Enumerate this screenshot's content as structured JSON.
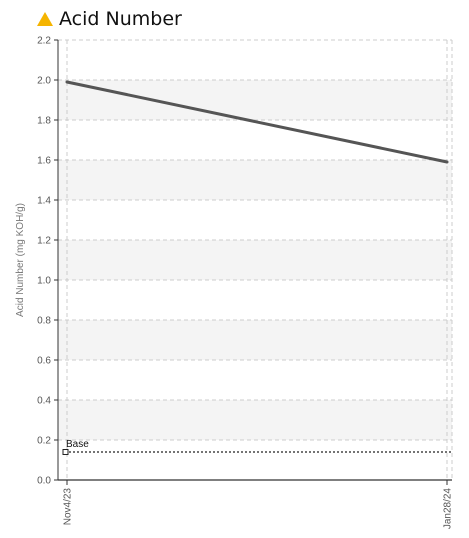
{
  "header": {
    "title": "Acid Number",
    "status_icon": "warning-triangle-icon",
    "status_color": "#f5b400"
  },
  "chart_data": {
    "type": "line",
    "title": "Acid Number",
    "ylabel": "Acid Number (mg KOH/g)",
    "xlabel": "",
    "ylim": [
      0,
      2.2
    ],
    "y_ticks": [
      0.0,
      0.2,
      0.4,
      0.6,
      0.8,
      1.0,
      1.2,
      1.4,
      1.6,
      1.8,
      2.0,
      2.2
    ],
    "y_tick_labels": [
      "0.0",
      "0.2",
      "0.4",
      "0.6",
      "0.8",
      "1.0",
      "1.2",
      "1.4",
      "1.6",
      "1.8",
      "2.0",
      "2.2"
    ],
    "categories": [
      "Nov4/23",
      "Jan28/24"
    ],
    "series": [
      {
        "values": [
          1.99,
          1.59
        ],
        "color": "#555555"
      }
    ],
    "reference_lines": [
      {
        "name": "Base",
        "value": 0.14,
        "style": "dotted",
        "color": "#222222"
      }
    ],
    "grid": true,
    "band_fill": "#f4f4f4",
    "grid_color": "#cccccc"
  }
}
